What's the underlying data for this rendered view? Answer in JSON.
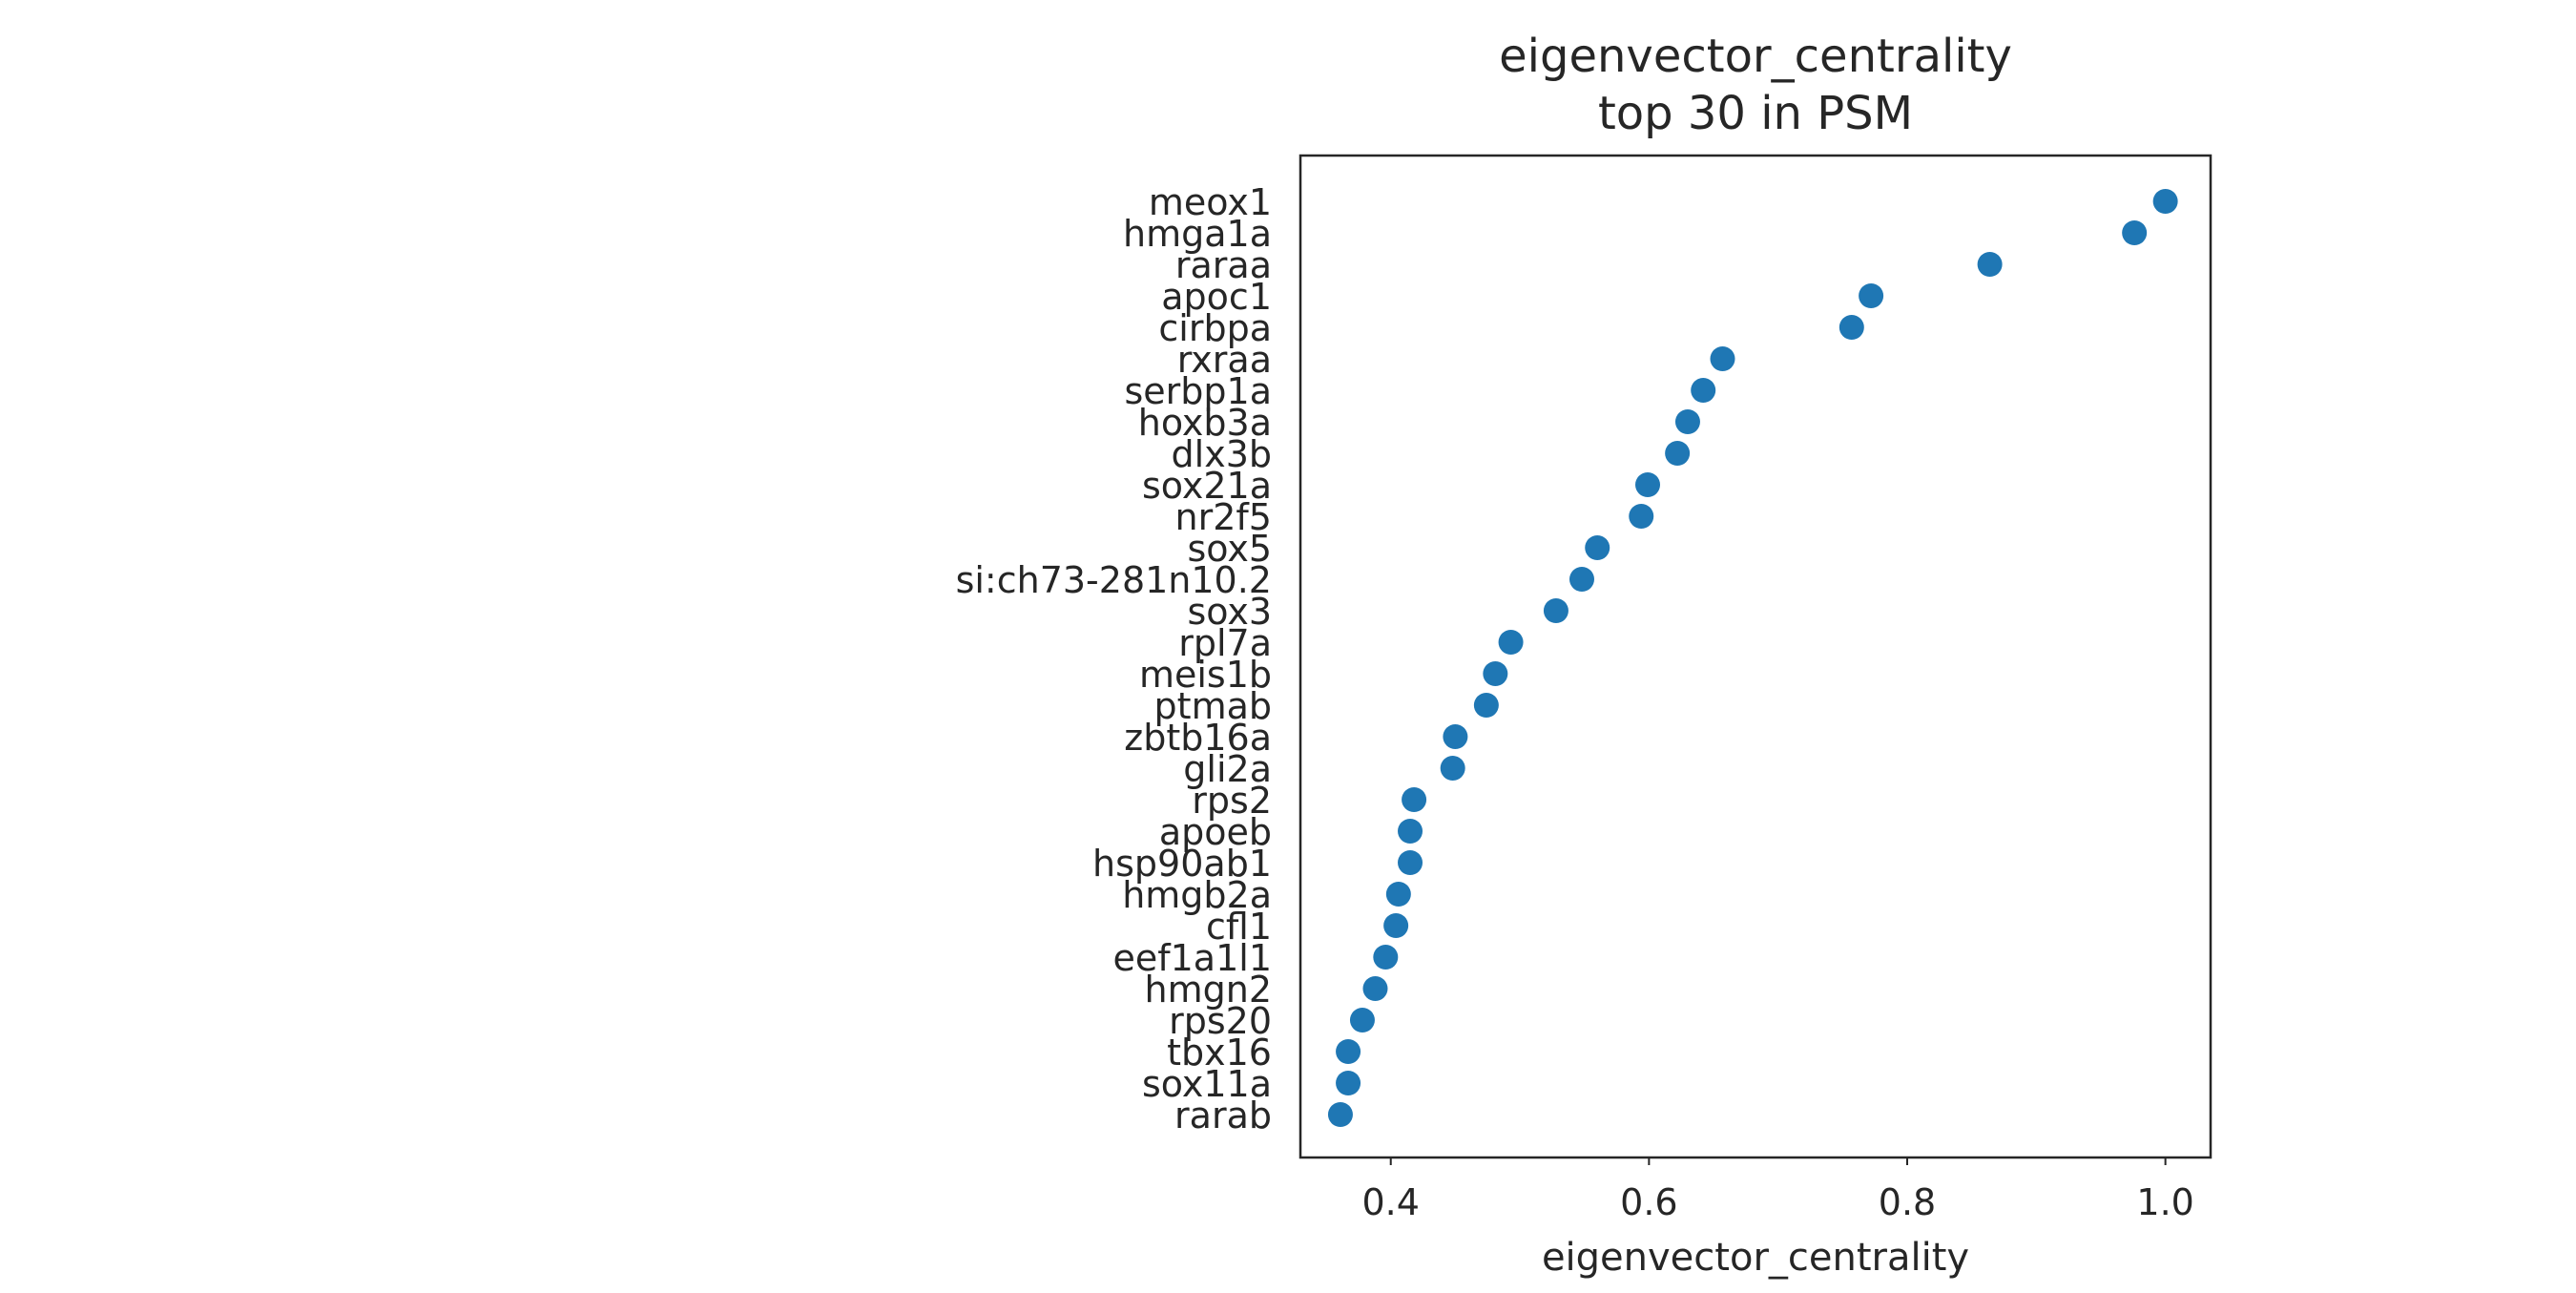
{
  "chart_data": {
    "type": "scatter",
    "title_lines": [
      "eigenvector_centrality",
      "top 30 in PSM"
    ],
    "xlabel": "eigenvector_centrality",
    "ylabel": "",
    "xlim": [
      0.33,
      1.035
    ],
    "xticks": [
      0.4,
      0.6,
      0.8,
      1.0
    ],
    "xtick_labels": [
      "0.4",
      "0.6",
      "0.8",
      "1.0"
    ],
    "grid": false,
    "marker_color": "#1f77b4",
    "categories": [
      "meox1",
      "hmga1a",
      "raraa",
      "apoc1",
      "cirbpa",
      "rxraa",
      "serbp1a",
      "hoxb3a",
      "dlx3b",
      "sox21a",
      "nr2f5",
      "sox5",
      "si:ch73-281n10.2",
      "sox3",
      "rpl7a",
      "meis1b",
      "ptmab",
      "zbtb16a",
      "gli2a",
      "rps2",
      "apoeb",
      "hsp90ab1",
      "hmgb2a",
      "cfl1",
      "eef1a1l1",
      "hmgn2",
      "rps20",
      "tbx16",
      "sox11a",
      "rarab"
    ],
    "values": [
      1.0,
      0.976,
      0.864,
      0.772,
      0.757,
      0.657,
      0.642,
      0.63,
      0.622,
      0.599,
      0.594,
      0.56,
      0.548,
      0.528,
      0.493,
      0.481,
      0.474,
      0.45,
      0.448,
      0.418,
      0.415,
      0.415,
      0.406,
      0.404,
      0.396,
      0.388,
      0.378,
      0.367,
      0.367,
      0.361
    ]
  }
}
